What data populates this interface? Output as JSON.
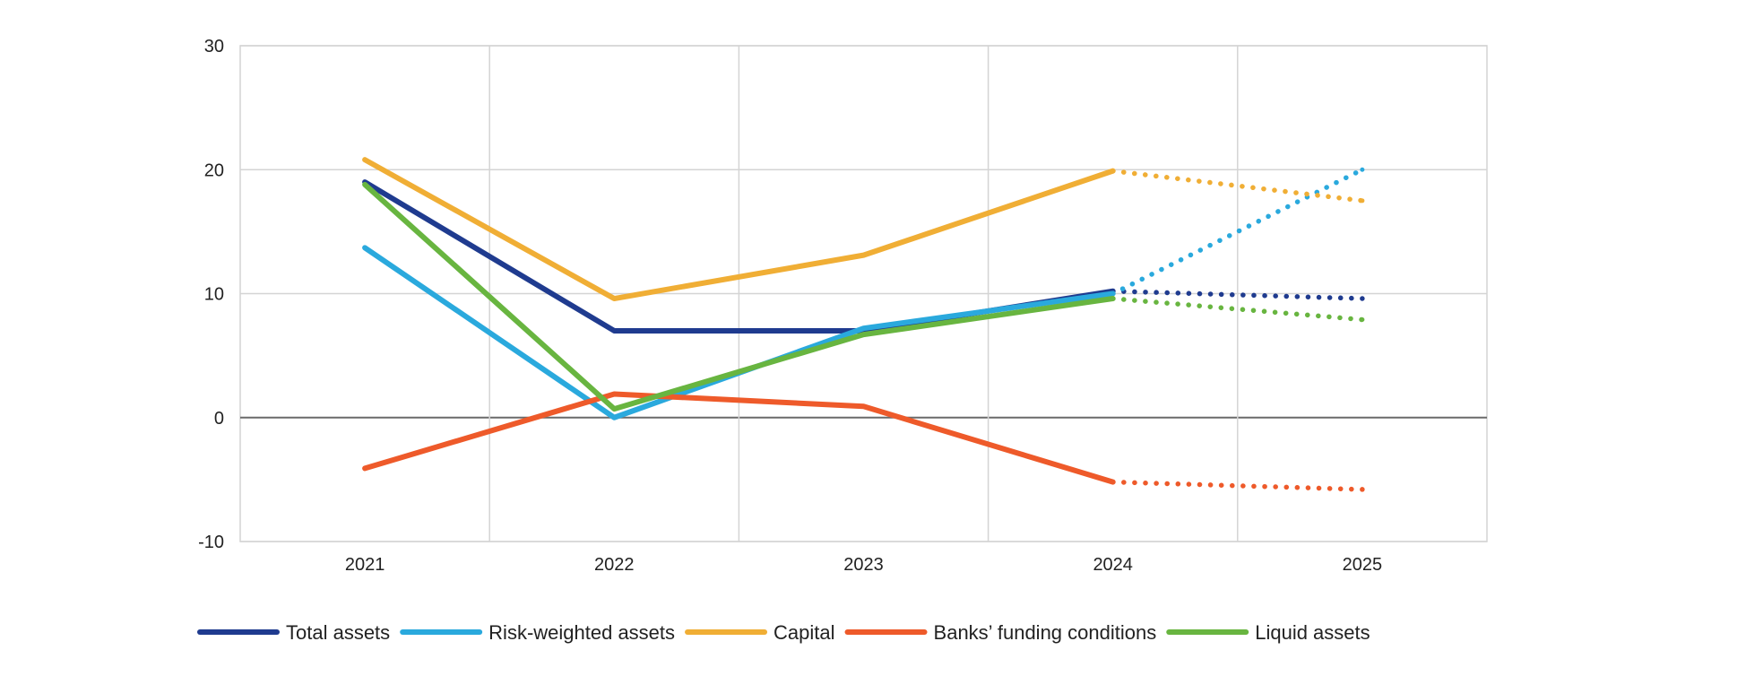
{
  "chart_data": {
    "type": "line",
    "title": "",
    "xlabel": "",
    "ylabel": "",
    "categories": [
      "2021",
      "2022",
      "2023",
      "2024",
      "2025"
    ],
    "ylim": [
      -10,
      30
    ],
    "yticks": [
      "30",
      "20",
      "10",
      "0",
      "-10"
    ],
    "grid": true,
    "legend_position": "bottom",
    "forecast_segment": "2024-2025 dotted",
    "series": [
      {
        "name": "Total assets",
        "color": "#1f3b8f",
        "values": [
          19.0,
          7.0,
          7.0,
          10.2,
          9.6
        ]
      },
      {
        "name": "Risk-weighted assets",
        "color": "#2aa9dd",
        "values": [
          13.7,
          0.0,
          7.2,
          10.0,
          20.0
        ]
      },
      {
        "name": "Capital",
        "color": "#f0ae35",
        "values": [
          20.8,
          9.6,
          13.1,
          19.9,
          17.5
        ]
      },
      {
        "name": "Banks’ funding conditions",
        "color": "#ee5a2a",
        "values": [
          -4.1,
          1.9,
          0.9,
          -5.2,
          -5.8
        ]
      },
      {
        "name": "Liquid assets",
        "color": "#68b540",
        "values": [
          18.8,
          0.7,
          6.7,
          9.6,
          7.9
        ]
      }
    ]
  }
}
